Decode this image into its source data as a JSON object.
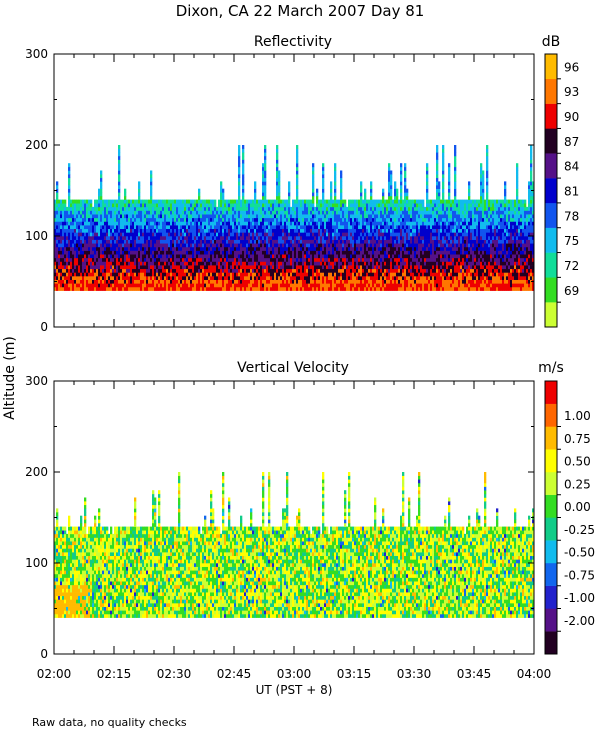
{
  "figure": {
    "title": "Dixon, CA 22 March 2007  Day  81",
    "ylabel": "Altitude (m)",
    "xlabel": "UT  (PST + 8)",
    "note": "Raw data, no quality checks"
  },
  "chart_data": [
    {
      "type": "heatmap",
      "title": "Reflectivity",
      "colorbar_label": "dB",
      "xlabel": "UT  (PST + 8)",
      "ylabel": "Altitude (m)",
      "x_range": [
        "02:00",
        "04:00"
      ],
      "ylim": [
        0,
        300
      ],
      "y_ticks": [
        0,
        100,
        200,
        300
      ],
      "colorbar_ticks": [
        "69",
        "72",
        "75",
        "78",
        "81",
        "84",
        "87",
        "90",
        "93",
        "96"
      ],
      "colorbar_colors": [
        "#ccff33",
        "#33dd22",
        "#11dd99",
        "#11bbee",
        "#1155ee",
        "#0000cc",
        "#551188",
        "#220022",
        "#ee0000",
        "#ff7700",
        "#ffbb00"
      ],
      "data_description": {
        "data_floor_m": 40,
        "main_top_m": 140,
        "spike_max_m": 200,
        "seed": 7
      }
    },
    {
      "type": "heatmap",
      "title": "Vertical Velocity",
      "colorbar_label": "m/s",
      "xlabel": "UT  (PST + 8)",
      "ylabel": "Altitude (m)",
      "x_range": [
        "02:00",
        "04:00"
      ],
      "ylim": [
        0,
        300
      ],
      "y_ticks": [
        0,
        100,
        200,
        300
      ],
      "x_ticks": [
        "02:00",
        "02:15",
        "02:30",
        "02:45",
        "03:00",
        "03:15",
        "03:30",
        "03:45",
        "04:00"
      ],
      "colorbar_ticks": [
        "-2.00",
        "-1.00",
        "-0.75",
        "-0.50",
        "-0.25",
        "0.00",
        "0.25",
        "0.50",
        "0.75",
        "1.00"
      ],
      "colorbar_colors": [
        "#220022",
        "#551188",
        "#2222cc",
        "#1166ee",
        "#11bbee",
        "#11cc88",
        "#33dd22",
        "#ccff33",
        "#ffff00",
        "#ffbb00",
        "#ff6600",
        "#ee0000"
      ],
      "data_description": {
        "data_floor_m": 40,
        "main_top_m": 140,
        "spike_max_m": 200,
        "seed": 13
      }
    }
  ]
}
